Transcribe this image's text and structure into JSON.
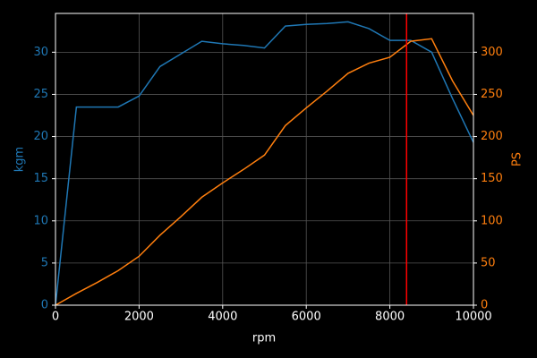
{
  "chart_data": {
    "type": "line",
    "xlabel": "rpm",
    "ylabel": "kgm",
    "y2label": "PS",
    "x": [
      0,
      500,
      1000,
      1500,
      2000,
      2500,
      3000,
      3500,
      4000,
      4500,
      5000,
      5500,
      6000,
      6500,
      7000,
      7500,
      8000,
      8500,
      9000,
      9500,
      10000
    ],
    "series": [
      {
        "name": "kgm",
        "color": "#1f77b4",
        "axis": "y",
        "values": [
          0,
          23.5,
          23.5,
          23.5,
          24.8,
          28.3,
          29.8,
          31.3,
          31.0,
          30.8,
          30.5,
          33.1,
          33.3,
          33.4,
          33.6,
          32.8,
          31.4,
          31.4,
          30.0,
          24.5,
          19.3
        ]
      },
      {
        "name": "PS",
        "color": "#ff7f0e",
        "axis": "y2",
        "values": [
          0,
          14,
          27,
          41,
          58,
          83,
          105,
          128,
          145,
          161,
          178,
          213,
          234,
          254,
          275,
          287,
          294,
          313,
          316,
          266,
          225
        ]
      }
    ],
    "xlim": [
      0,
      10000
    ],
    "xticks": [
      0,
      2000,
      4000,
      6000,
      8000,
      10000
    ],
    "ylim": [
      0,
      34.6
    ],
    "yticks": [
      0,
      5,
      10,
      15,
      20,
      25,
      30
    ],
    "y2lim": [
      0,
      346
    ],
    "y2ticks": [
      0,
      50,
      100,
      150,
      200,
      250,
      300
    ],
    "grid": true,
    "vline": {
      "x": 8400,
      "color": "#ff0000"
    }
  }
}
